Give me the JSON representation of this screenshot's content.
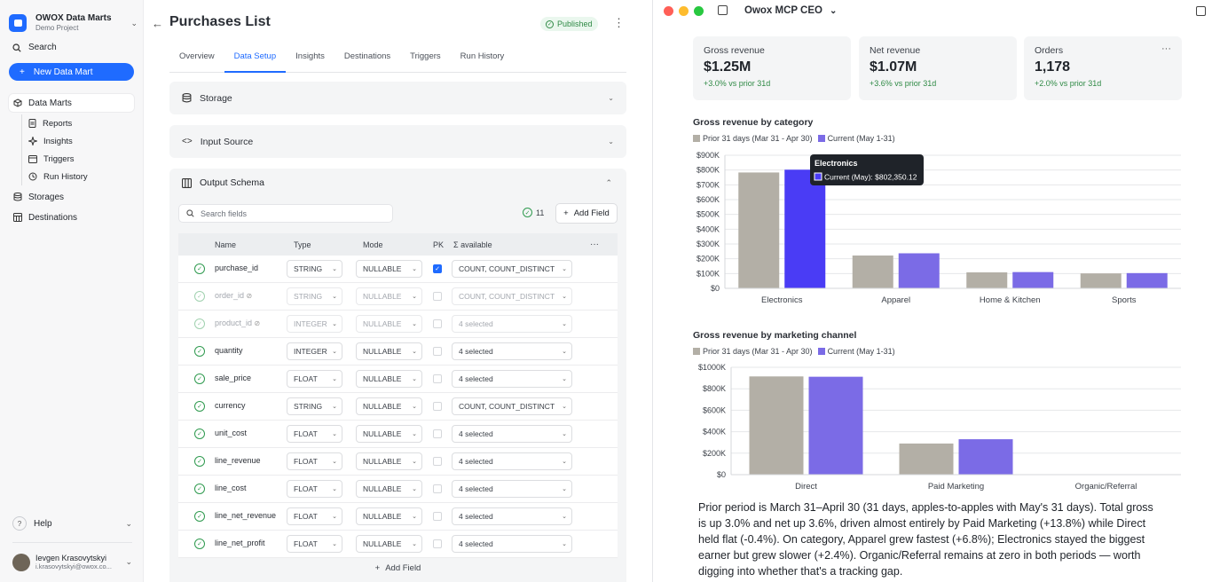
{
  "sidebar": {
    "brand_name": "OWOX Data Marts",
    "brand_sub": "Demo Project",
    "search_label": "Search",
    "new_button": "New Data Mart",
    "items": [
      {
        "label": "Data Marts",
        "icon": "cube-icon"
      },
      {
        "label": "Reports",
        "icon": "report-icon"
      },
      {
        "label": "Insights",
        "icon": "sparkle-icon"
      },
      {
        "label": "Triggers",
        "icon": "calendar-icon"
      },
      {
        "label": "Run History",
        "icon": "history-icon"
      },
      {
        "label": "Storages",
        "icon": "database-icon"
      },
      {
        "label": "Destinations",
        "icon": "table-icon"
      }
    ],
    "help_label": "Help",
    "user_name": "Ievgen Krasovytskyi",
    "user_email": "i.krasovytskyi@owox.co..."
  },
  "main": {
    "title": "Purchases List",
    "status": "Published",
    "tabs": [
      "Overview",
      "Data Setup",
      "Insights",
      "Destinations",
      "Triggers",
      "Run History"
    ],
    "active_tab": "Data Setup",
    "sections": {
      "storage": "Storage",
      "input_source": "Input Source",
      "output_schema": "Output Schema"
    },
    "search_placeholder": "Search fields",
    "field_count": "11",
    "add_field": "Add Field",
    "columns": {
      "name": "Name",
      "type": "Type",
      "mode": "Mode",
      "pk": "PK",
      "available": "Σ available"
    },
    "rows": [
      {
        "name": "purchase_id",
        "type": "STRING",
        "mode": "NULLABLE",
        "pk": true,
        "available": "COUNT, COUNT_DISTINCT",
        "hidden": false
      },
      {
        "name": "order_id",
        "type": "STRING",
        "mode": "NULLABLE",
        "pk": false,
        "available": "COUNT, COUNT_DISTINCT",
        "hidden": true
      },
      {
        "name": "product_id",
        "type": "INTEGER",
        "mode": "NULLABLE",
        "pk": false,
        "available": "4 selected",
        "hidden": true
      },
      {
        "name": "quantity",
        "type": "INTEGER",
        "mode": "NULLABLE",
        "pk": false,
        "available": "4 selected",
        "hidden": false
      },
      {
        "name": "sale_price",
        "type": "FLOAT",
        "mode": "NULLABLE",
        "pk": false,
        "available": "4 selected",
        "hidden": false
      },
      {
        "name": "currency",
        "type": "STRING",
        "mode": "NULLABLE",
        "pk": false,
        "available": "COUNT, COUNT_DISTINCT",
        "hidden": false
      },
      {
        "name": "unit_cost",
        "type": "FLOAT",
        "mode": "NULLABLE",
        "pk": false,
        "available": "4 selected",
        "hidden": false
      },
      {
        "name": "line_revenue",
        "type": "FLOAT",
        "mode": "NULLABLE",
        "pk": false,
        "available": "4 selected",
        "hidden": false
      },
      {
        "name": "line_cost",
        "type": "FLOAT",
        "mode": "NULLABLE",
        "pk": false,
        "available": "4 selected",
        "hidden": false
      },
      {
        "name": "line_net_revenue",
        "type": "FLOAT",
        "mode": "NULLABLE",
        "pk": false,
        "available": "4 selected",
        "hidden": false
      },
      {
        "name": "line_net_profit",
        "type": "FLOAT",
        "mode": "NULLABLE",
        "pk": false,
        "available": "4 selected",
        "hidden": false
      }
    ]
  },
  "panel": {
    "window_title": "Owox MCP CEO",
    "kpis": [
      {
        "label": "Gross revenue",
        "value": "$1.25M",
        "delta": "+3.0% vs prior 31d"
      },
      {
        "label": "Net revenue",
        "value": "$1.07M",
        "delta": "+3.6% vs prior 31d"
      },
      {
        "label": "Orders",
        "value": "1,178",
        "delta": "+2.0% vs prior 31d"
      }
    ],
    "summary": "Prior period is March 31–April 30 (31 days, apples-to-apples with May's 31 days). Total gross is up 3.0% and net up 3.6%, driven almost entirely by Paid Marketing (+13.8%) while Direct held flat (-0.4%). On category, Apparel grew fastest (+6.8%); Electronics stayed the biggest earner but grew slower (+2.4%). Organic/Referral remains at zero in both periods — worth digging into whether that's a tracking gap."
  },
  "colors": {
    "prior": "#b3afa6",
    "current": "#7b6be6",
    "highlight": "#4a3cf5",
    "accent": "#1f6bff"
  },
  "chart_data": [
    {
      "type": "bar",
      "title": "Gross revenue by category",
      "categories": [
        "Electronics",
        "Apparel",
        "Home & Kitchen",
        "Sports"
      ],
      "series": [
        {
          "name": "Prior 31 days (Mar 31 - Apr 30)",
          "values": [
            783500,
            222000,
            108000,
            101000
          ]
        },
        {
          "name": "Current (May 1-31)",
          "values": [
            802350.12,
            237000,
            110000,
            103000
          ]
        }
      ],
      "ylim": [
        0,
        900000
      ],
      "yticks": [
        "$0",
        "$100K",
        "$200K",
        "$300K",
        "$400K",
        "$500K",
        "$600K",
        "$700K",
        "$800K",
        "$900K"
      ],
      "tooltip": {
        "title": "Electronics",
        "text": "Current (May): $802,350.12"
      }
    },
    {
      "type": "bar",
      "title": "Gross revenue by marketing channel",
      "categories": [
        "Direct",
        "Paid Marketing",
        "Organic/Referral"
      ],
      "series": [
        {
          "name": "Prior 31 days (Mar 31 - Apr 30)",
          "values": [
            915000,
            290000,
            0
          ]
        },
        {
          "name": "Current (May 1-31)",
          "values": [
            912000,
            330000,
            0
          ]
        }
      ],
      "ylim": [
        0,
        1000000
      ],
      "yticks": [
        "$0",
        "$200K",
        "$400K",
        "$600K",
        "$800K",
        "$1000K"
      ]
    }
  ]
}
